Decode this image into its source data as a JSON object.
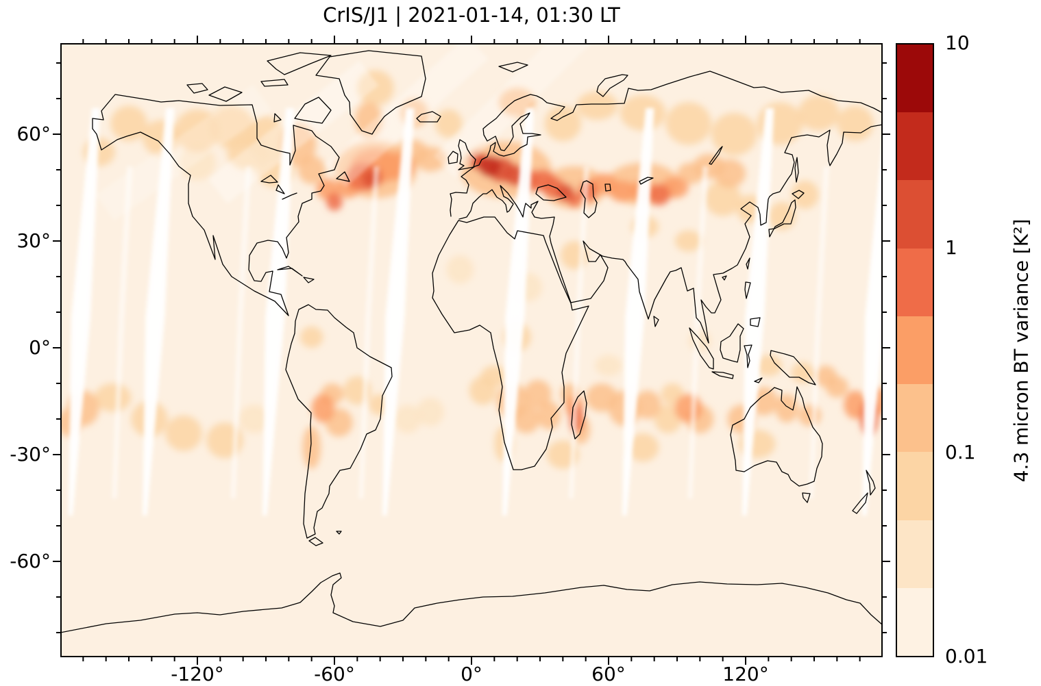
{
  "figure": {
    "title": "CrIS/J1 | 2021-01-14, 01:30 LT"
  },
  "chart_data": {
    "type": "heatmap",
    "title": "CrIS/J1 | 2021-01-14, 01:30 LT",
    "projection": "plate-carree world map",
    "lon_range": [
      -180,
      180
    ],
    "lat_range": [
      -87,
      85.6
    ],
    "grid": false,
    "x_tick_labels": [
      "-120°",
      "-60°",
      "0°",
      "60°",
      "120°"
    ],
    "x_tick_values": [
      -120,
      -60,
      0,
      60,
      120
    ],
    "x_minor_step_deg": 10,
    "y_tick_labels": [
      "60°",
      "30°",
      "0°",
      "-30°",
      "-60°"
    ],
    "y_tick_values": [
      60,
      30,
      0,
      -30,
      -60
    ],
    "y_minor_step_deg": 10,
    "background_value": 0.02,
    "base_color": "#fdf0e1",
    "coastline_color": "#000000",
    "colorbar": {
      "label": "4.3 micron BT variance [K²]",
      "scale": "log10",
      "min": 0.01,
      "max": 10,
      "tick_labels": [
        "10",
        "1",
        "0.1",
        "0.01"
      ],
      "tick_values": [
        10,
        1,
        0.1,
        0.01
      ],
      "n_bands": 9,
      "band_colors": [
        "#fef2e3",
        "#fde5c6",
        "#fcd5a5",
        "#fcc18c",
        "#fb9e66",
        "#ef6c48",
        "#dc4f33",
        "#c32b1c",
        "#9c0909"
      ]
    },
    "hotspots_format": [
      "lon_deg",
      "lat_deg",
      "rx_deg",
      "ry_deg",
      "variance_K2"
    ],
    "hotspots": [
      [
        -42,
        50,
        18,
        8,
        0.12
      ],
      [
        15,
        50,
        20,
        8,
        0.14
      ],
      [
        45,
        45,
        14,
        6,
        0.12
      ],
      [
        75,
        46,
        16,
        6,
        0.12
      ],
      [
        -47,
        48,
        8,
        4,
        0.7
      ],
      [
        -44,
        47.5,
        4,
        2.5,
        1.6
      ],
      [
        -42,
        51,
        11,
        5,
        0.35
      ],
      [
        -33,
        51,
        8,
        4,
        0.22
      ],
      [
        -54,
        45,
        5,
        3,
        0.45
      ],
      [
        -60,
        41,
        3.5,
        2.5,
        0.9
      ],
      [
        -63,
        44.5,
        5,
        3,
        0.3
      ],
      [
        -26,
        55,
        7,
        3.5,
        0.15
      ],
      [
        -18,
        53,
        7,
        3.5,
        0.12
      ],
      [
        3,
        52.5,
        4,
        2.5,
        1.2
      ],
      [
        8,
        51,
        5,
        3,
        2.6
      ],
      [
        13,
        50,
        6,
        3.5,
        2.1
      ],
      [
        19,
        48.5,
        5,
        3,
        1.5
      ],
      [
        25,
        47,
        5,
        3,
        0.9
      ],
      [
        31,
        47,
        6,
        3,
        0.5
      ],
      [
        36,
        45,
        5,
        3,
        0.7
      ],
      [
        41,
        43.5,
        4,
        2.5,
        1.4
      ],
      [
        45,
        41.5,
        3,
        2,
        0.9
      ],
      [
        51,
        44,
        4,
        3,
        0.6
      ],
      [
        58,
        46,
        6,
        3,
        0.3
      ],
      [
        66,
        44,
        6,
        3,
        0.25
      ],
      [
        75,
        44,
        6,
        3,
        0.3
      ],
      [
        82,
        43,
        5,
        3,
        0.5
      ],
      [
        89,
        45,
        6,
        3,
        0.3
      ],
      [
        96,
        49,
        6,
        3,
        0.18
      ],
      [
        104,
        51,
        7,
        3.5,
        0.12
      ],
      [
        113,
        49,
        7,
        4,
        0.1
      ],
      [
        -150,
        63,
        8,
        5,
        0.06
      ],
      [
        -136,
        59,
        8,
        5,
        0.05
      ],
      [
        -120,
        61,
        10,
        6,
        0.05
      ],
      [
        -105,
        62,
        10,
        6,
        0.07
      ],
      [
        -90,
        59,
        9,
        6,
        0.08
      ],
      [
        -76,
        57,
        8,
        6,
        0.12
      ],
      [
        -70,
        50,
        6,
        4,
        0.1
      ],
      [
        -86,
        50,
        8,
        5,
        0.06
      ],
      [
        -45,
        64,
        6,
        5,
        0.16
      ],
      [
        -42,
        73,
        8,
        5,
        0.08
      ],
      [
        -25,
        66,
        6,
        4,
        0.1
      ],
      [
        -10,
        63,
        6,
        4,
        0.08
      ],
      [
        20,
        69,
        8,
        4,
        0.1
      ],
      [
        40,
        63,
        8,
        5,
        0.06
      ],
      [
        55,
        68,
        9,
        4,
        0.05
      ],
      [
        75,
        66,
        10,
        5,
        0.05
      ],
      [
        95,
        63,
        10,
        6,
        0.05
      ],
      [
        115,
        60,
        10,
        6,
        0.06
      ],
      [
        135,
        63,
        10,
        6,
        0.07
      ],
      [
        152,
        66,
        9,
        5,
        0.09
      ],
      [
        168,
        63,
        8,
        5,
        0.06
      ],
      [
        -163,
        55,
        7,
        4,
        0.05
      ],
      [
        -120,
        52,
        8,
        5,
        0.04
      ],
      [
        -98,
        55,
        9,
        5,
        0.05
      ],
      [
        110,
        42,
        8,
        5,
        0.07
      ],
      [
        122,
        39,
        6,
        4,
        0.08
      ],
      [
        136,
        37,
        6,
        4,
        0.08
      ],
      [
        146,
        43,
        6,
        4,
        0.06
      ],
      [
        76,
        34,
        6,
        3,
        0.06
      ],
      [
        95,
        30,
        6,
        3,
        0.08
      ],
      [
        45,
        26,
        6,
        4,
        0.05
      ],
      [
        25,
        17,
        6,
        4,
        0.04
      ],
      [
        -5,
        22,
        6,
        4,
        0.04
      ],
      [
        -65,
        -17,
        5,
        4,
        0.3
      ],
      [
        -61,
        -13,
        5,
        3,
        0.15
      ],
      [
        -58,
        -21,
        6,
        4,
        0.12
      ],
      [
        -70,
        -28,
        4,
        6,
        0.1
      ],
      [
        -50,
        -12,
        6,
        4,
        0.07
      ],
      [
        -40,
        -16,
        5,
        3,
        0.06
      ],
      [
        -28,
        -20,
        6,
        4,
        0.04
      ],
      [
        -170,
        -17,
        7,
        5,
        0.15
      ],
      [
        -176,
        -21,
        5,
        4,
        0.12
      ],
      [
        -157,
        -14,
        8,
        4,
        0.08
      ],
      [
        -141,
        -20,
        8,
        5,
        0.07
      ],
      [
        -126,
        -24,
        8,
        5,
        0.06
      ],
      [
        -108,
        -26,
        8,
        5,
        0.05
      ],
      [
        -95,
        -20,
        7,
        4,
        0.04
      ],
      [
        18,
        -15,
        7,
        5,
        0.2
      ],
      [
        24,
        -20,
        6,
        4,
        0.15
      ],
      [
        14,
        -27,
        4,
        5,
        0.08
      ],
      [
        29,
        -13,
        6,
        4,
        0.1
      ],
      [
        34,
        -19,
        5,
        4,
        0.12
      ],
      [
        10,
        -8,
        6,
        3,
        0.05
      ],
      [
        46,
        -20,
        3,
        4,
        0.8
      ],
      [
        45,
        -16.5,
        4,
        3,
        0.35
      ],
      [
        48,
        -23,
        4,
        4,
        0.2
      ],
      [
        43,
        -13,
        4,
        3,
        0.15
      ],
      [
        57,
        -14,
        7,
        4,
        0.1
      ],
      [
        67,
        -17,
        7,
        5,
        0.12
      ],
      [
        77,
        -16,
        6,
        4,
        0.1
      ],
      [
        86,
        -20,
        6,
        4,
        0.07
      ],
      [
        95,
        -17,
        6,
        4,
        0.25
      ],
      [
        100,
        -20,
        6,
        4,
        0.12
      ],
      [
        88,
        -13,
        5,
        3,
        0.08
      ],
      [
        118,
        -20,
        6,
        4,
        0.15
      ],
      [
        128,
        -15,
        6,
        4,
        0.12
      ],
      [
        138,
        -17,
        5,
        4,
        0.1
      ],
      [
        148,
        -19,
        5,
        3,
        0.1
      ],
      [
        125,
        -27,
        8,
        4,
        0.05
      ],
      [
        168,
        -16,
        5,
        4,
        0.4
      ],
      [
        174,
        -19.5,
        4,
        5,
        0.7
      ],
      [
        178,
        -15,
        4,
        4,
        0.3
      ],
      [
        160,
        -11,
        5,
        3,
        0.12
      ],
      [
        155,
        -8,
        5,
        3,
        0.1
      ],
      [
        130,
        -5,
        6,
        3,
        0.06
      ],
      [
        145,
        -7,
        5,
        3,
        0.08
      ],
      [
        75,
        -28,
        7,
        4,
        0.06
      ],
      [
        40,
        -30,
        7,
        4,
        0.05
      ],
      [
        -18,
        -18,
        6,
        4,
        0.04
      ],
      [
        5,
        -12,
        6,
        4,
        0.05
      ],
      [
        -70,
        3,
        5,
        3,
        0.05
      ],
      [
        20,
        3,
        6,
        4,
        0.05
      ],
      [
        100,
        2,
        5,
        3,
        0.04
      ],
      [
        60,
        -5,
        6,
        3,
        0.04
      ]
    ],
    "swath_gaps": {
      "description": "white no-data gaps between successive polar-orbit swaths, leaning NNE",
      "color": "#ffffff",
      "equator_lons": [
        -171,
        -138.5,
        -86,
        -33.5,
        19,
        71.5,
        124,
        176.5
      ],
      "secondary_lons": [
        -155,
        -103,
        -47,
        45,
        97,
        150
      ]
    }
  }
}
